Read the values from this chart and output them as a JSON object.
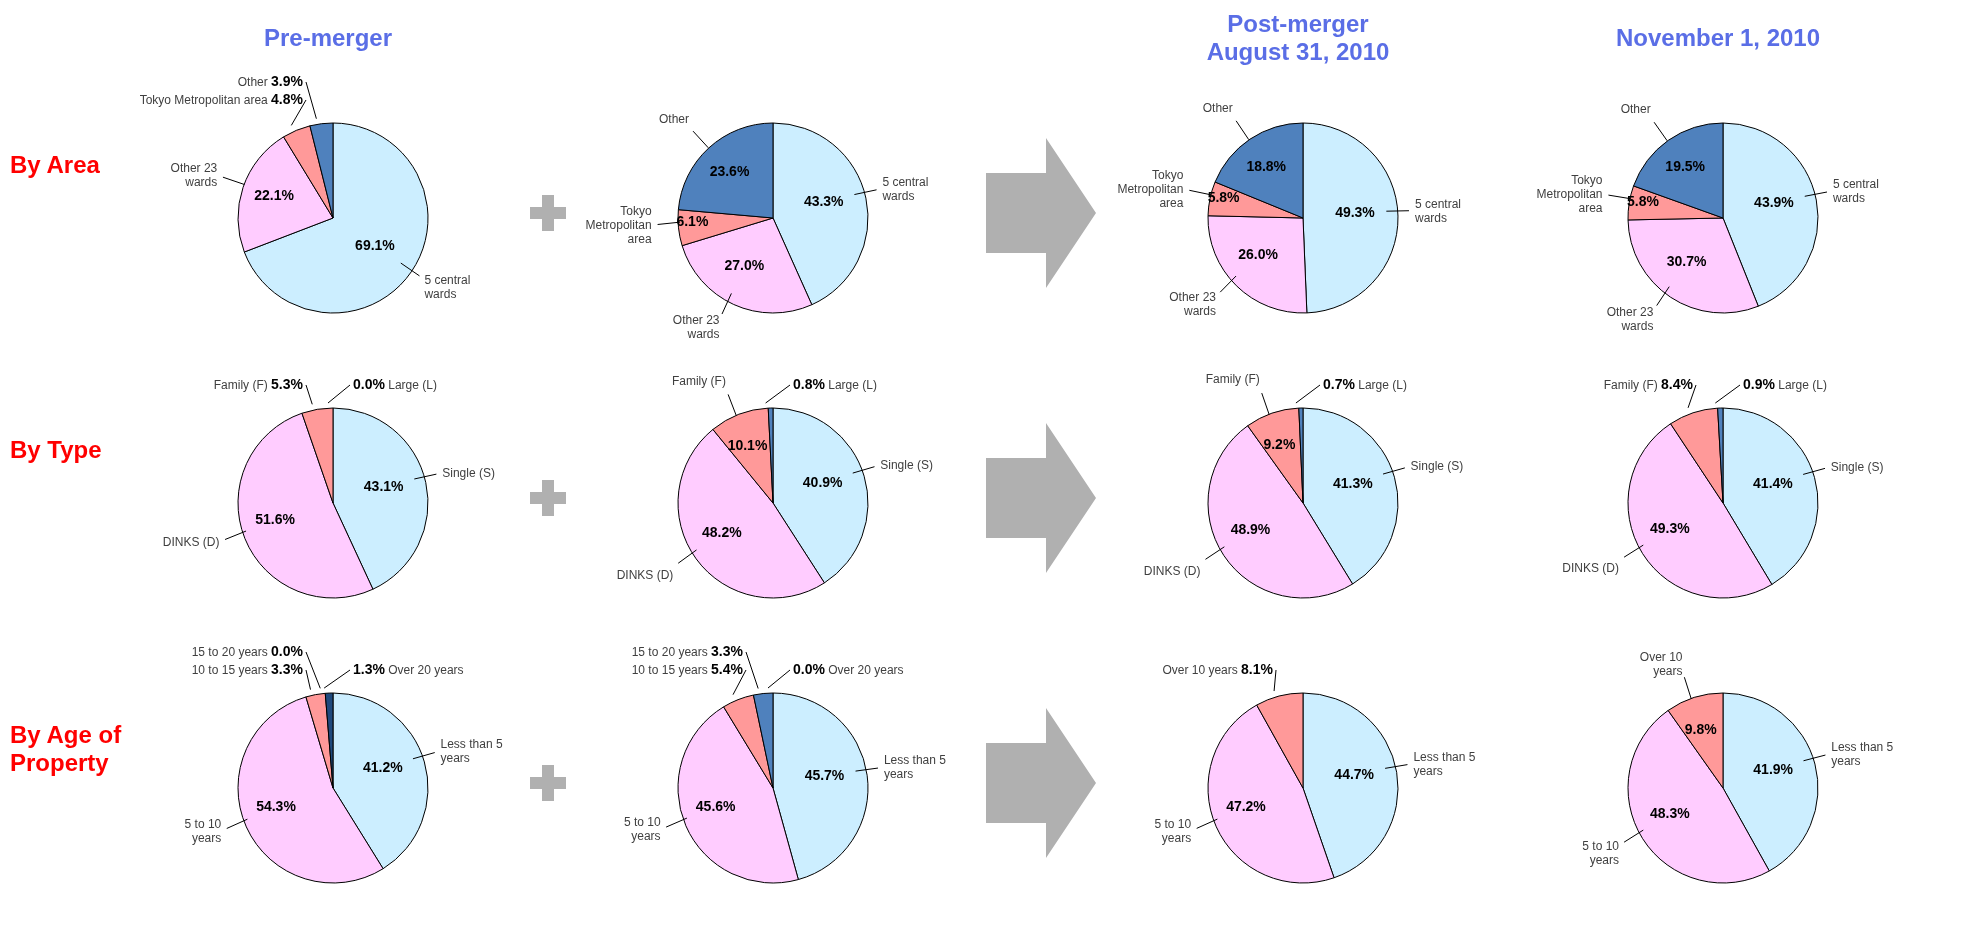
{
  "chart_data": [
    {
      "type": "pie",
      "title": "Pre-merger",
      "annotations": [
        "By Area"
      ],
      "categories": [
        "5 central wards",
        "Other 23 wards",
        "Tokyo Metropolitan area",
        "Other"
      ],
      "values": [
        69.1,
        22.1,
        4.8,
        3.9
      ],
      "colors": [
        "#cceeff",
        "#ffccff",
        "#ff9999",
        "#4f81bd"
      ],
      "value_labels": [
        "69.1%",
        "22.1%",
        "4.8%",
        "3.9%"
      ]
    },
    {
      "type": "pie",
      "categories": [
        "5 central wards",
        "Other 23 wards",
        "Tokyo Metropolitan area",
        "Other"
      ],
      "values": [
        43.3,
        27.0,
        6.1,
        23.6
      ],
      "colors": [
        "#cceeff",
        "#ffccff",
        "#ff9999",
        "#4f81bd"
      ],
      "value_labels": [
        "43.3%",
        "27.0%",
        "6.1%",
        "23.6%"
      ]
    },
    {
      "type": "pie",
      "title": "Post-merger\nAugust 31, 2010",
      "categories": [
        "5 central wards",
        "Other 23 wards",
        "Tokyo Metropolitan area",
        "Other"
      ],
      "values": [
        49.3,
        26.0,
        5.8,
        18.8
      ],
      "colors": [
        "#cceeff",
        "#ffccff",
        "#ff9999",
        "#4f81bd"
      ],
      "value_labels": [
        "49.3%",
        "26.0%",
        "5.8%",
        "18.8%"
      ]
    },
    {
      "type": "pie",
      "title": "November 1, 2010",
      "categories": [
        "5 central wards",
        "Other 23 wards",
        "Tokyo Metropolitan area",
        "Other"
      ],
      "values": [
        43.9,
        30.7,
        5.8,
        19.5
      ],
      "colors": [
        "#cceeff",
        "#ffccff",
        "#ff9999",
        "#4f81bd"
      ],
      "value_labels": [
        "43.9%",
        "30.7%",
        "5.8%",
        "19.5%"
      ]
    },
    {
      "type": "pie",
      "annotations": [
        "By Type"
      ],
      "categories": [
        "Single (S)",
        "DINKS (D)",
        "Family (F)",
        "Large (L)"
      ],
      "values": [
        43.1,
        51.6,
        5.3,
        0.0
      ],
      "colors": [
        "#cceeff",
        "#ffccff",
        "#ff9999",
        "#4f81bd"
      ],
      "value_labels": [
        "43.1%",
        "51.6%",
        "5.3%",
        "0.0%"
      ]
    },
    {
      "type": "pie",
      "categories": [
        "Single (S)",
        "DINKS (D)",
        "Family (F)",
        "Large (L)"
      ],
      "values": [
        40.9,
        48.2,
        10.1,
        0.8
      ],
      "colors": [
        "#cceeff",
        "#ffccff",
        "#ff9999",
        "#4f81bd"
      ],
      "value_labels": [
        "40.9%",
        "48.2%",
        "10.1%",
        "0.8%"
      ]
    },
    {
      "type": "pie",
      "categories": [
        "Single (S)",
        "DINKS (D)",
        "Family (F)",
        "Large (L)"
      ],
      "values": [
        41.3,
        48.9,
        9.2,
        0.7
      ],
      "colors": [
        "#cceeff",
        "#ffccff",
        "#ff9999",
        "#4f81bd"
      ],
      "value_labels": [
        "41.3%",
        "48.9%",
        "9.2%",
        "0.7%"
      ]
    },
    {
      "type": "pie",
      "categories": [
        "Single (S)",
        "DINKS (D)",
        "Family (F)",
        "Large (L)"
      ],
      "values": [
        41.4,
        49.3,
        8.4,
        0.9
      ],
      "colors": [
        "#cceeff",
        "#ffccff",
        "#ff9999",
        "#4f81bd"
      ],
      "value_labels": [
        "41.4%",
        "49.3%",
        "8.4%",
        "0.9%"
      ]
    },
    {
      "type": "pie",
      "annotations": [
        "By Age of Property"
      ],
      "categories": [
        "Less than 5 years",
        "5 to 10 years",
        "10 to 15 years",
        "15 to 20 years",
        "Over 20 years"
      ],
      "values": [
        41.2,
        54.3,
        3.3,
        0.0,
        1.3
      ],
      "colors": [
        "#cceeff",
        "#ffccff",
        "#ff9999",
        "#4f81bd",
        "#1f497d"
      ],
      "value_labels": [
        "41.2%",
        "54.3%",
        "3.3%",
        "0.0%",
        "1.3%"
      ]
    },
    {
      "type": "pie",
      "categories": [
        "Less than 5 years",
        "5 to 10 years",
        "10 to 15 years",
        "15 to 20 years",
        "Over 20 years"
      ],
      "values": [
        45.7,
        45.6,
        5.4,
        3.3,
        0.0
      ],
      "colors": [
        "#cceeff",
        "#ffccff",
        "#ff9999",
        "#4f81bd",
        "#1f497d"
      ],
      "value_labels": [
        "45.7%",
        "45.6%",
        "5.4%",
        "3.3%",
        "0.0%"
      ]
    },
    {
      "type": "pie",
      "categories": [
        "Less than 5 years",
        "5 to 10 years",
        "Over 10 years"
      ],
      "values": [
        44.7,
        47.2,
        8.1
      ],
      "colors": [
        "#cceeff",
        "#ffccff",
        "#ff9999"
      ],
      "value_labels": [
        "44.7%",
        "47.2%",
        "8.1%"
      ]
    },
    {
      "type": "pie",
      "categories": [
        "Less than 5 years",
        "5 to 10 years",
        "Over 10 years"
      ],
      "values": [
        41.9,
        48.3,
        9.8
      ],
      "colors": [
        "#cceeff",
        "#ffccff",
        "#ff9999"
      ],
      "value_labels": [
        "41.9%",
        "48.3%",
        "9.8%"
      ]
    }
  ]
}
